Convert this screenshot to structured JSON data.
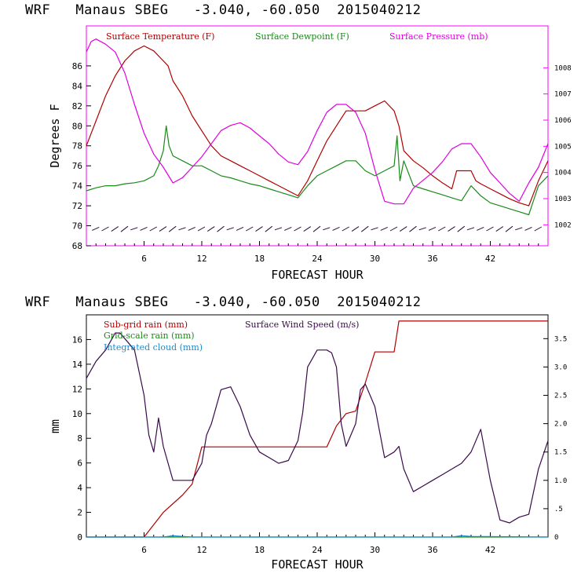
{
  "charts": [
    {
      "title": "WRF   Manaus SBEG   -3.040, -60.050  2015040212",
      "xlabel": "FORECAST HOUR",
      "ylabel": "Degrees F",
      "x_ticks": [
        "6",
        "12",
        "18",
        "24",
        "30",
        "36",
        "42"
      ],
      "y_ticks": [
        "68",
        "70",
        "72",
        "74",
        "76",
        "78",
        "80",
        "82",
        "84",
        "86"
      ],
      "y2_ticks": [
        "1002",
        "1003",
        "1004",
        "1005",
        "1006",
        "1007",
        "1008"
      ],
      "legend": [
        {
          "label": "Surface Temperature (F)",
          "color": "#b00000"
        },
        {
          "label": "Surface Dewpoint (F)",
          "color": "#1a8a1a"
        },
        {
          "label": "Surface Pressure (mb)",
          "color": "#e000e0"
        }
      ]
    },
    {
      "title": "WRF   Manaus SBEG   -3.040, -60.050  2015040212",
      "xlabel": "FORECAST HOUR",
      "ylabel": "mm",
      "x_ticks": [
        "6",
        "12",
        "18",
        "24",
        "30",
        "36",
        "42"
      ],
      "y_ticks": [
        "0",
        "2",
        "4",
        "6",
        "8",
        "10",
        "12",
        "14",
        "16"
      ],
      "y2_ticks": [
        "0",
        ".5",
        "1.0",
        "1.5",
        "2.0",
        "2.5",
        "3.0",
        "3.5"
      ],
      "legend": [
        {
          "label": "Sub-grid rain (mm)",
          "color": "#b00000"
        },
        {
          "label": "Surface Wind Speed (m/s)",
          "color": "#3a0a4a"
        },
        {
          "label": "Grid-scale rain (mm)",
          "color": "#1a8a1a"
        },
        {
          "label": "Integrated cloud (mm)",
          "color": "#1a8ad0"
        }
      ]
    }
  ],
  "chart_data": [
    {
      "type": "line",
      "title": "WRF   Manaus SBEG   -3.040, -60.050  2015040212",
      "xlabel": "FORECAST HOUR",
      "ylabel": "Degrees F",
      "xlim": [
        0,
        48
      ],
      "ylim": [
        68,
        90
      ],
      "y2lim": [
        1001.2,
        1009.6
      ],
      "x_ticks": [
        6,
        12,
        18,
        24,
        30,
        36,
        42
      ],
      "y_ticks": [
        68,
        70,
        72,
        74,
        76,
        78,
        80,
        82,
        84,
        86
      ],
      "y2_ticks": [
        1002,
        1003,
        1004,
        1005,
        1006,
        1007,
        1008
      ],
      "legend_position": "top",
      "series": [
        {
          "name": "Surface Temperature (F)",
          "axis": "left",
          "color": "#b00000",
          "x": [
            0,
            1,
            2,
            3,
            4,
            5,
            6,
            7,
            8,
            8.5,
            9,
            10,
            11,
            12,
            13,
            14,
            15,
            16,
            17,
            18,
            19,
            20,
            21,
            22,
            23,
            24,
            25,
            26,
            27,
            28,
            29,
            30,
            31,
            32,
            32.5,
            33,
            34,
            35,
            36,
            37,
            38,
            38.5,
            39,
            40,
            40.5,
            41,
            42,
            43,
            44,
            45,
            46,
            47,
            48
          ],
          "y": [
            78.0,
            80.5,
            83.0,
            85.0,
            86.5,
            87.5,
            88.0,
            87.5,
            86.5,
            86.0,
            84.5,
            83.0,
            81.0,
            79.5,
            78.0,
            77.0,
            76.5,
            76.0,
            75.5,
            75.0,
            74.5,
            74.0,
            73.5,
            73.0,
            74.5,
            76.5,
            78.5,
            80.0,
            81.5,
            81.5,
            81.5,
            82.0,
            82.5,
            81.5,
            80.0,
            77.5,
            76.5,
            75.8,
            75.0,
            74.3,
            73.7,
            75.5,
            75.5,
            75.5,
            74.5,
            74.2,
            73.7,
            73.2,
            72.7,
            72.3,
            72.0,
            74.5,
            76.5
          ]
        },
        {
          "name": "Surface Dewpoint (F)",
          "axis": "left",
          "color": "#1a8a1a",
          "x": [
            0,
            1,
            2,
            3,
            4,
            5,
            6,
            7,
            7.5,
            8,
            8.3,
            8.6,
            9,
            10,
            11,
            12,
            13,
            14,
            15,
            16,
            17,
            18,
            19,
            20,
            21,
            22,
            23,
            24,
            25,
            26,
            27,
            28,
            29,
            30,
            31,
            32,
            32.3,
            32.6,
            33,
            34,
            35,
            36,
            37,
            38,
            39,
            40,
            41,
            42,
            43,
            44,
            45,
            46,
            47,
            48
          ],
          "y": [
            73.5,
            73.8,
            74.0,
            74.0,
            74.2,
            74.3,
            74.5,
            75.0,
            76.0,
            77.5,
            80.0,
            78.0,
            77.0,
            76.5,
            76.0,
            76.0,
            75.5,
            75.0,
            74.8,
            74.5,
            74.2,
            74.0,
            73.7,
            73.4,
            73.1,
            72.8,
            74.0,
            75.0,
            75.5,
            76.0,
            76.5,
            76.5,
            75.5,
            75.0,
            75.5,
            76.0,
            79.0,
            74.5,
            76.5,
            74.0,
            73.7,
            73.4,
            73.1,
            72.8,
            72.5,
            74.0,
            73.0,
            72.3,
            72.0,
            71.7,
            71.4,
            71.1,
            74.0,
            75.0
          ]
        },
        {
          "name": "Surface Pressure (mb)",
          "axis": "right",
          "color": "#e000e0",
          "x": [
            0,
            0.5,
            1,
            2,
            3,
            4,
            5,
            6,
            7,
            8,
            9,
            10,
            11,
            12,
            13,
            14,
            15,
            16,
            17,
            18,
            19,
            20,
            21,
            22,
            23,
            24,
            25,
            26,
            27,
            28,
            29,
            30,
            31,
            32,
            33,
            34,
            35,
            36,
            37,
            38,
            39,
            40,
            41,
            42,
            43,
            44,
            45,
            46,
            47,
            48
          ],
          "y": [
            1008.6,
            1009.0,
            1009.1,
            1008.9,
            1008.6,
            1007.8,
            1006.6,
            1005.5,
            1004.7,
            1004.2,
            1003.6,
            1003.8,
            1004.2,
            1004.6,
            1005.1,
            1005.6,
            1005.8,
            1005.9,
            1005.7,
            1005.4,
            1005.1,
            1004.7,
            1004.4,
            1004.3,
            1004.8,
            1005.6,
            1006.3,
            1006.6,
            1006.6,
            1006.3,
            1005.5,
            1004.1,
            1002.9,
            1002.8,
            1002.8,
            1003.4,
            1003.7,
            1004.0,
            1004.4,
            1004.9,
            1005.1,
            1005.1,
            1004.6,
            1004.0,
            1003.6,
            1003.2,
            1002.9,
            1003.6,
            1004.2,
            1005.1
          ]
        }
      ]
    },
    {
      "type": "line",
      "title": "WRF   Manaus SBEG   -3.040, -60.050  2015040212",
      "xlabel": "FORECAST HOUR",
      "ylabel": "mm",
      "xlim": [
        0,
        48
      ],
      "ylim": [
        0,
        18
      ],
      "y2lim": [
        0,
        3.92
      ],
      "x_ticks": [
        6,
        12,
        18,
        24,
        30,
        36,
        42
      ],
      "y_ticks": [
        0,
        2,
        4,
        6,
        8,
        10,
        12,
        14,
        16
      ],
      "y2_ticks": [
        0,
        0.5,
        1.0,
        1.5,
        2.0,
        2.5,
        3.0,
        3.5
      ],
      "legend_position": "top-left",
      "series": [
        {
          "name": "Sub-grid rain (mm)",
          "axis": "left",
          "color": "#b00000",
          "x": [
            0,
            6,
            7,
            8,
            9,
            10,
            11,
            12,
            13,
            15,
            18,
            21,
            24,
            25,
            26,
            27,
            28,
            29,
            30,
            31,
            32,
            32.5,
            33,
            36,
            40,
            44,
            48
          ],
          "y": [
            0,
            0,
            1.0,
            2.0,
            2.7,
            3.4,
            4.3,
            7.3,
            7.3,
            7.3,
            7.3,
            7.3,
            7.3,
            7.3,
            9.0,
            10.0,
            10.2,
            12.5,
            15.0,
            15.0,
            15.0,
            17.5,
            17.5,
            17.5,
            17.5,
            17.5,
            17.5
          ]
        },
        {
          "name": "Surface Wind Speed (m/s)",
          "axis": "right",
          "color": "#3a0a4a",
          "x": [
            0,
            1,
            2,
            3,
            3.5,
            4,
            5,
            6,
            6.5,
            7,
            7.5,
            8,
            9,
            10,
            11,
            12,
            12.5,
            13,
            14,
            15,
            16,
            17,
            18,
            19,
            20,
            21,
            22,
            22.5,
            23,
            24,
            25,
            25.5,
            26,
            26.5,
            27,
            28,
            28.5,
            29,
            30,
            31,
            32,
            32.5,
            33,
            34,
            35,
            36,
            37,
            38,
            39,
            40,
            41,
            42,
            43,
            44,
            45,
            46,
            47,
            48
          ],
          "y": [
            2.8,
            3.1,
            3.3,
            3.6,
            3.6,
            3.5,
            3.3,
            2.5,
            1.8,
            1.5,
            2.1,
            1.6,
            1.0,
            1.0,
            1.0,
            1.3,
            1.8,
            2.0,
            2.6,
            2.65,
            2.3,
            1.8,
            1.5,
            1.4,
            1.3,
            1.35,
            1.7,
            2.2,
            3.0,
            3.3,
            3.3,
            3.25,
            3.0,
            2.0,
            1.6,
            2.0,
            2.6,
            2.7,
            2.3,
            1.4,
            1.5,
            1.6,
            1.2,
            0.8,
            0.9,
            1.0,
            1.1,
            1.2,
            1.3,
            1.5,
            1.9,
            1.0,
            0.3,
            0.25,
            0.35,
            0.4,
            1.2,
            1.7
          ]
        },
        {
          "name": "Grid-scale rain (mm)",
          "axis": "left",
          "color": "#1a8a1a",
          "x": [
            0,
            48
          ],
          "y": [
            0,
            0
          ]
        },
        {
          "name": "Integrated cloud (mm)",
          "axis": "left",
          "color": "#1a8ad0",
          "x": [
            0,
            8,
            9,
            10,
            11,
            38,
            39,
            40,
            48
          ],
          "y": [
            0,
            0,
            0.1,
            0.05,
            0,
            0,
            0.1,
            0.05,
            0
          ]
        }
      ]
    }
  ]
}
